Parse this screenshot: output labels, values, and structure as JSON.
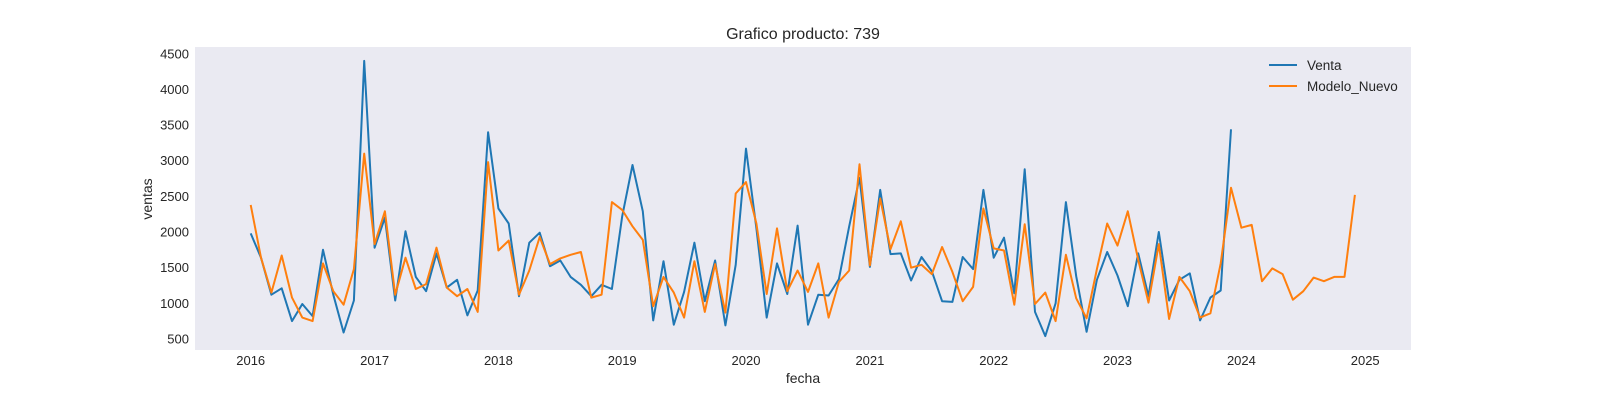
{
  "chart_data": {
    "type": "line",
    "title": "Grafico producto: 739",
    "xlabel": "fecha",
    "ylabel": "ventas",
    "xlim": [
      2015.55,
      2025.37
    ],
    "ylim": [
      345,
      4595
    ],
    "x_ticks": [
      {
        "value": 2016,
        "label": "2016"
      },
      {
        "value": 2017,
        "label": "2017"
      },
      {
        "value": 2018,
        "label": "2018"
      },
      {
        "value": 2019,
        "label": "2019"
      },
      {
        "value": 2020,
        "label": "2020"
      },
      {
        "value": 2021,
        "label": "2021"
      },
      {
        "value": 2022,
        "label": "2022"
      },
      {
        "value": 2023,
        "label": "2023"
      },
      {
        "value": 2024,
        "label": "2024"
      },
      {
        "value": 2025,
        "label": "2025"
      }
    ],
    "y_ticks": [
      500,
      1000,
      1500,
      2000,
      2500,
      3000,
      3500,
      4000,
      4500
    ],
    "grid": false,
    "legend_position": "top-right",
    "series": [
      {
        "name": "Venta",
        "color": "#1f77b4",
        "start": 2016.0,
        "step": 0.0833333,
        "values": [
          1980,
          1640,
          1120,
          1210,
          750,
          990,
          820,
          1750,
          1120,
          590,
          1040,
          4400,
          1780,
          2200,
          1040,
          2010,
          1370,
          1170,
          1700,
          1220,
          1330,
          830,
          1180,
          3400,
          2330,
          2120,
          1100,
          1850,
          1990,
          1520,
          1600,
          1370,
          1260,
          1100,
          1260,
          1200,
          2220,
          2940,
          2290,
          760,
          1590,
          700,
          1160,
          1850,
          1030,
          1600,
          690,
          1540,
          3170,
          2050,
          800,
          1560,
          1130,
          2090,
          700,
          1120,
          1110,
          1340,
          2080,
          2760,
          1510,
          2590,
          1690,
          1700,
          1320,
          1650,
          1450,
          1030,
          1020,
          1650,
          1480,
          2590,
          1640,
          1920,
          1140,
          2880,
          880,
          540,
          1000,
          2420,
          1380,
          600,
          1330,
          1720,
          1390,
          960,
          1700,
          1100,
          2000,
          1040,
          1330,
          1420,
          760,
          1080,
          1180,
          3440
        ]
      },
      {
        "name": "Modelo_Nuevo",
        "color": "#ff7f0e",
        "start": 2016.0,
        "step": 0.0833333,
        "values": [
          2380,
          1640,
          1150,
          1670,
          1080,
          800,
          750,
          1560,
          1170,
          980,
          1480,
          3100,
          1830,
          2290,
          1120,
          1640,
          1200,
          1270,
          1780,
          1220,
          1100,
          1200,
          880,
          2980,
          1740,
          1880,
          1120,
          1460,
          1930,
          1550,
          1630,
          1680,
          1720,
          1080,
          1120,
          2420,
          2310,
          2080,
          1890,
          960,
          1370,
          1150,
          800,
          1590,
          880,
          1550,
          870,
          2540,
          2700,
          2120,
          1130,
          2050,
          1170,
          1460,
          1160,
          1560,
          800,
          1300,
          1460,
          2950,
          1530,
          2470,
          1760,
          2150,
          1500,
          1540,
          1410,
          1790,
          1440,
          1030,
          1230,
          2330,
          1770,
          1740,
          980,
          2110,
          990,
          1150,
          750,
          1680,
          1070,
          790,
          1480,
          2120,
          1810,
          2290,
          1610,
          1010,
          1830,
          780,
          1370,
          1170,
          800,
          860,
          1560,
          2620,
          2060,
          2100,
          1310,
          1490,
          1410,
          1050,
          1170,
          1360,
          1310,
          1370,
          1370,
          2520
        ]
      }
    ]
  }
}
